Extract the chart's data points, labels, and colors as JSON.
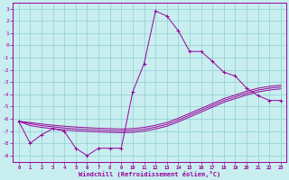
{
  "xlabel": "Windchill (Refroidissement éolien,°C)",
  "bg_color": "#c8eef0",
  "grid_color": "#8ecfcf",
  "line_color": "#990099",
  "x_hours": [
    0,
    1,
    2,
    3,
    4,
    5,
    6,
    7,
    8,
    9,
    10,
    11,
    12,
    13,
    14,
    15,
    16,
    17,
    18,
    19,
    20,
    21,
    22,
    23
  ],
  "y_temp": [
    -6.2,
    -8.0,
    -7.3,
    -6.8,
    -7.0,
    -8.4,
    -9.0,
    -8.4,
    -8.4,
    -8.4,
    -3.8,
    -1.5,
    2.8,
    2.4,
    1.2,
    -0.5,
    -0.5,
    -1.3,
    -2.2,
    -2.5,
    -3.5,
    -4.1,
    -4.5,
    -4.5
  ],
  "y_line1": [
    -6.2,
    -6.4,
    -6.55,
    -6.65,
    -6.75,
    -6.82,
    -6.87,
    -6.92,
    -6.95,
    -6.98,
    -6.95,
    -6.85,
    -6.68,
    -6.45,
    -6.1,
    -5.7,
    -5.3,
    -4.9,
    -4.5,
    -4.2,
    -3.9,
    -3.65,
    -3.5,
    -3.4
  ],
  "y_line2": [
    -6.2,
    -6.3,
    -6.42,
    -6.52,
    -6.6,
    -6.67,
    -6.72,
    -6.77,
    -6.8,
    -6.83,
    -6.8,
    -6.7,
    -6.53,
    -6.3,
    -5.95,
    -5.55,
    -5.15,
    -4.75,
    -4.35,
    -4.05,
    -3.75,
    -3.5,
    -3.35,
    -3.25
  ],
  "y_line3": [
    -6.2,
    -6.55,
    -6.7,
    -6.8,
    -6.9,
    -6.97,
    -7.02,
    -7.07,
    -7.1,
    -7.13,
    -7.1,
    -7.0,
    -6.83,
    -6.6,
    -6.25,
    -5.85,
    -5.45,
    -5.05,
    -4.65,
    -4.35,
    -4.05,
    -3.8,
    -3.65,
    -3.55
  ],
  "ylim": [
    -9.5,
    3.5
  ],
  "yticks": [
    3,
    2,
    1,
    0,
    -1,
    -2,
    -3,
    -4,
    -5,
    -6,
    -7,
    -8,
    -9
  ],
  "xticks": [
    0,
    1,
    2,
    3,
    4,
    5,
    6,
    7,
    8,
    9,
    10,
    11,
    12,
    13,
    14,
    15,
    16,
    17,
    18,
    19,
    20,
    21,
    22,
    23
  ],
  "figsize": [
    3.2,
    2.0
  ],
  "dpi": 100
}
